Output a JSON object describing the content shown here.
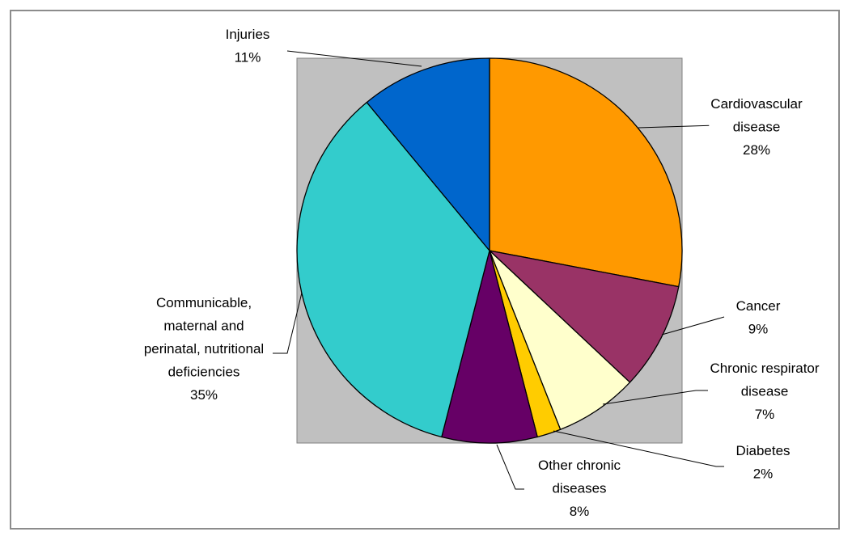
{
  "chart_data": {
    "type": "pie",
    "title": "",
    "start_angle_deg": 0,
    "direction": "clockwise",
    "plot_area_color": "#c0c0c0",
    "slices": [
      {
        "label_lines": [
          "Cardiovascular",
          "disease",
          "28%"
        ],
        "name": "Cardiovascular disease",
        "value": 28,
        "color": "#ff9900"
      },
      {
        "label_lines": [
          "Cancer",
          "9%"
        ],
        "name": "Cancer",
        "value": 9,
        "color": "#993366"
      },
      {
        "label_lines": [
          "Chronic respirator",
          "disease",
          "7%"
        ],
        "name": "Chronic respirator disease",
        "value": 7,
        "color": "#ffffcc"
      },
      {
        "label_lines": [
          "Diabetes",
          "2%"
        ],
        "name": "Diabetes",
        "value": 2,
        "color": "#ffcc00"
      },
      {
        "label_lines": [
          "Other chronic",
          "diseases",
          "8%"
        ],
        "name": "Other chronic diseases",
        "value": 8,
        "color": "#660066"
      },
      {
        "label_lines": [
          "Communicable,",
          "maternal and",
          "perinatal, nutritional",
          "deficiencies",
          "35%"
        ],
        "name": "Communicable, maternal and perinatal, nutritional deficiencies",
        "value": 35,
        "color": "#33cccc"
      },
      {
        "label_lines": [
          "Injuries",
          "11%"
        ],
        "name": "Injuries",
        "value": 11,
        "color": "#0066cc"
      }
    ]
  }
}
